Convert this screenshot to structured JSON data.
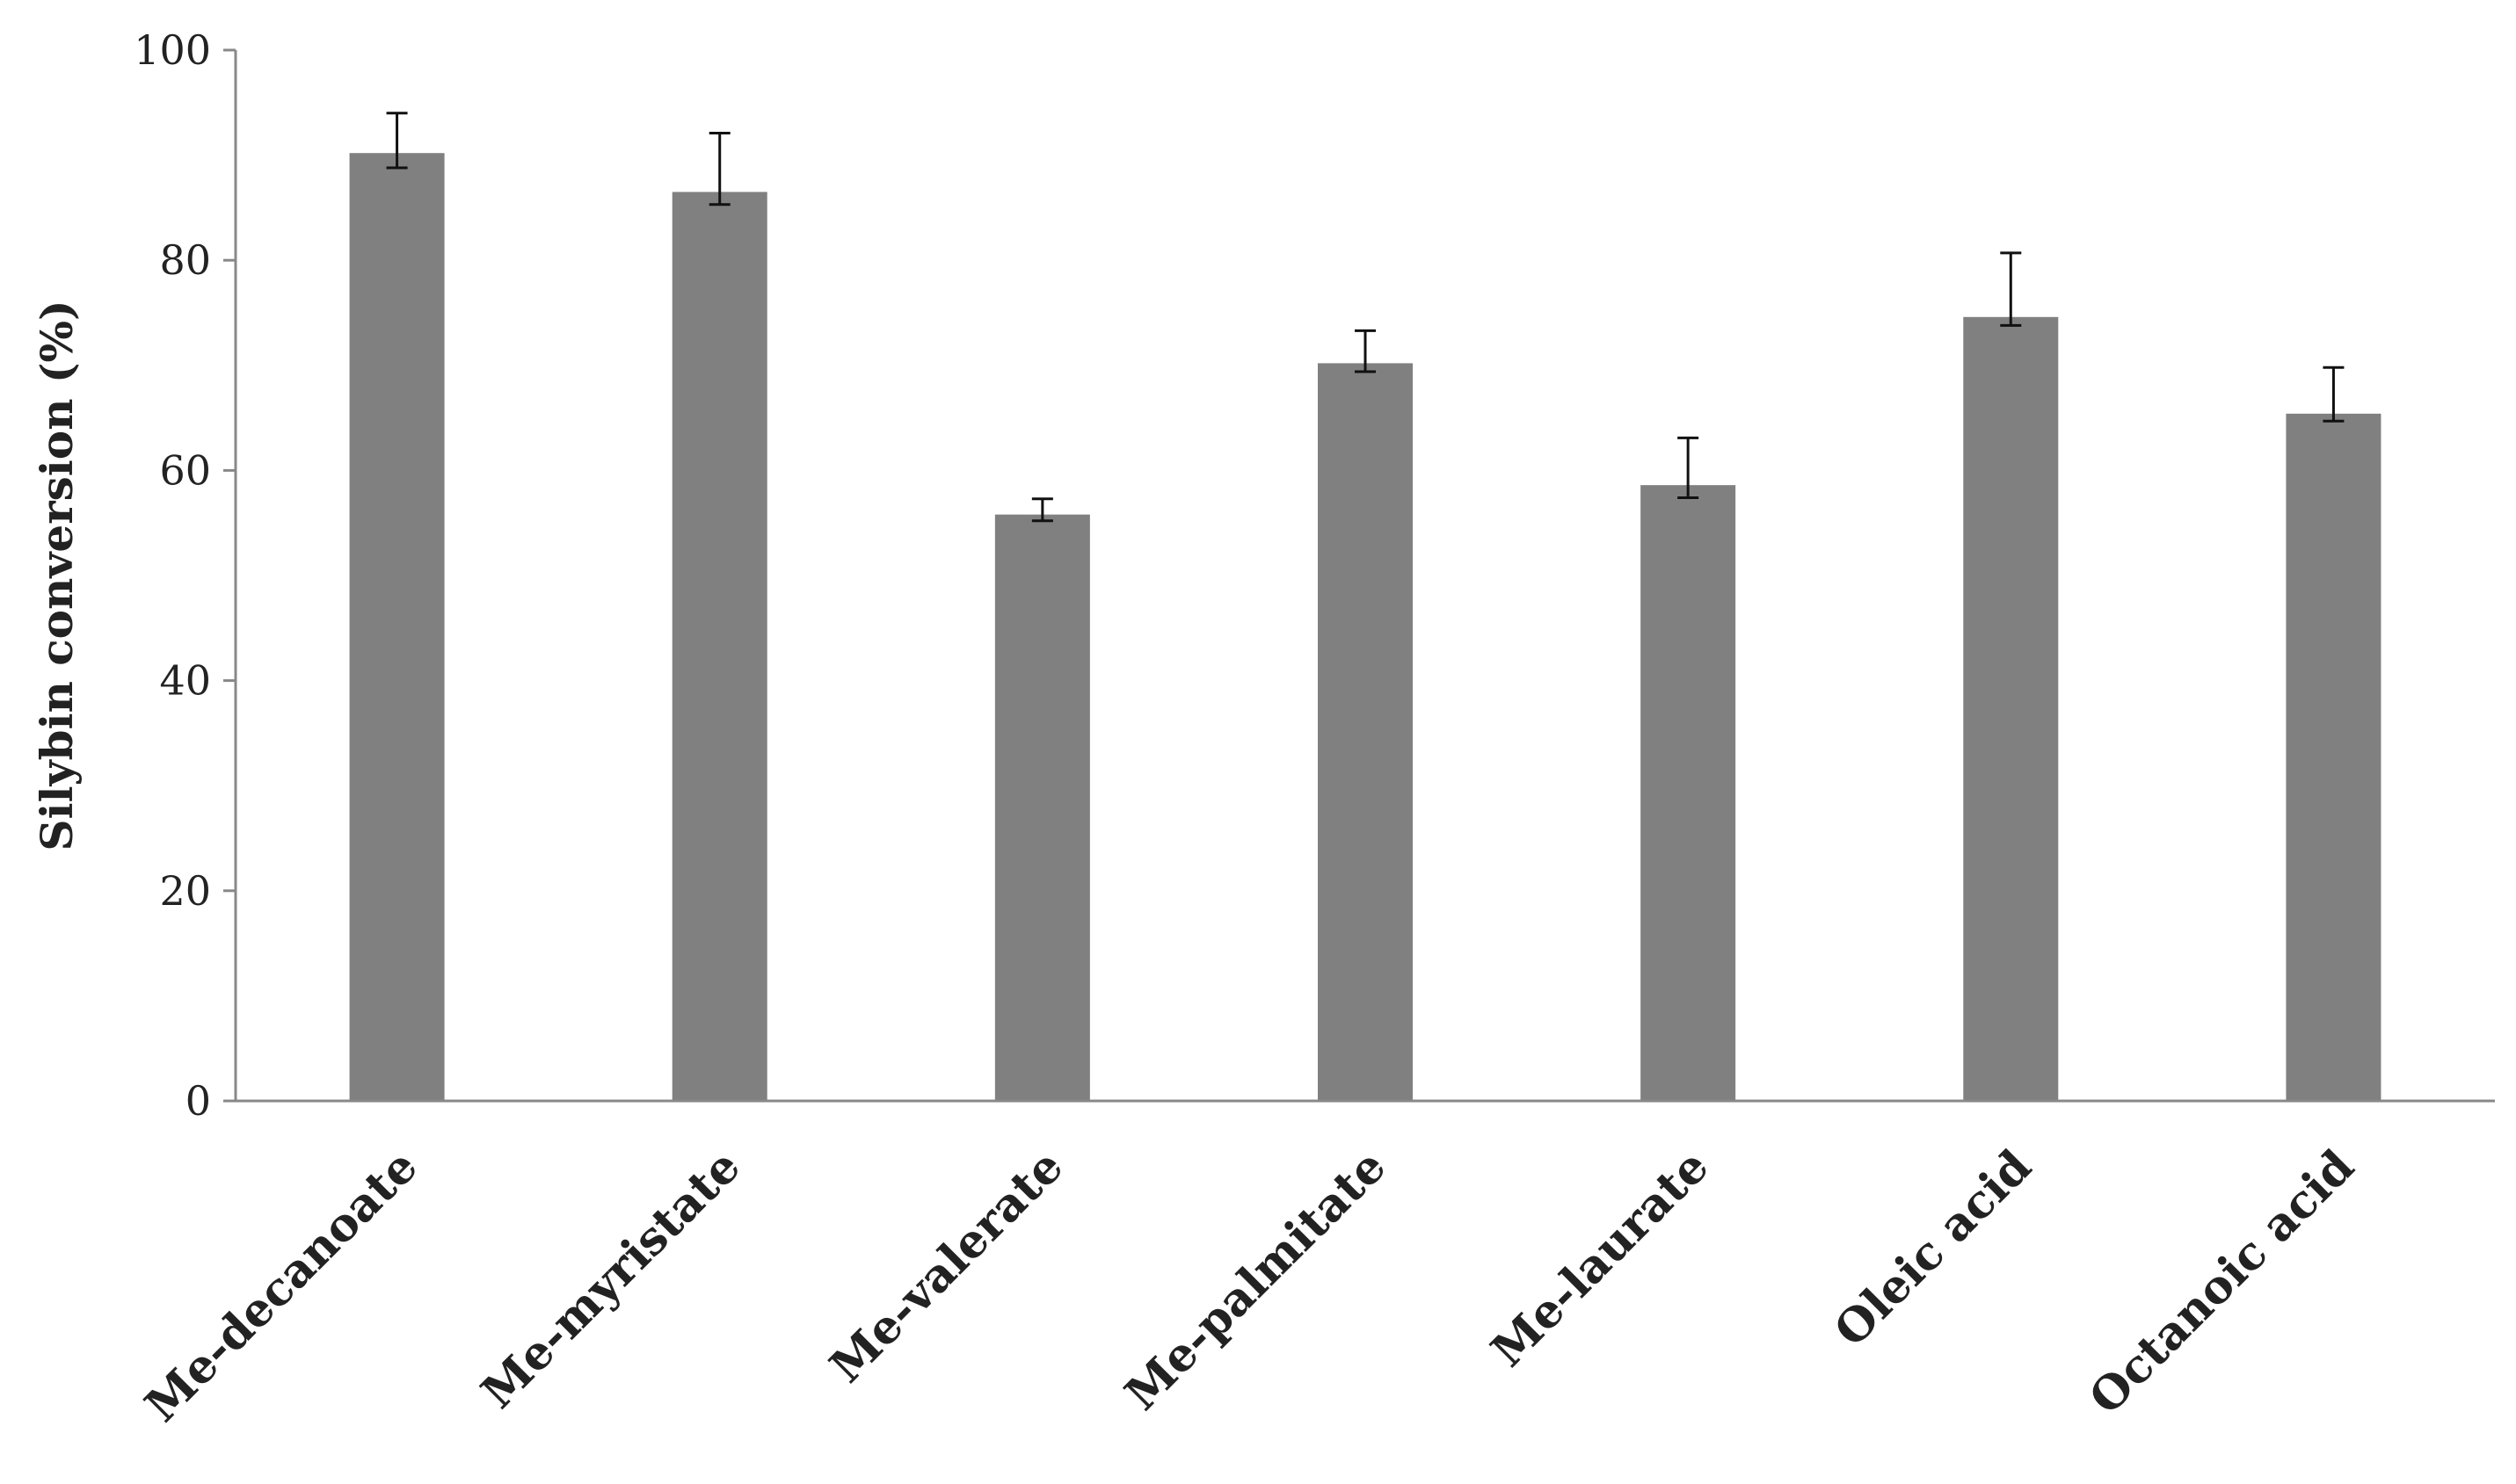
{
  "chart_data": {
    "type": "bar",
    "title": "",
    "xlabel": "",
    "ylabel": "Silybin conversion (%)",
    "categories": [
      "Me-decanoate",
      "Me-myristate",
      "Me-valerate",
      "Me-palmitate",
      "Me-laurate",
      "Oleic acid",
      "Octanoic acid"
    ],
    "values": [
      90.2,
      86.5,
      55.8,
      70.2,
      58.6,
      74.6,
      65.4
    ],
    "error_plus": [
      3.8,
      5.6,
      1.5,
      3.1,
      4.5,
      6.1,
      4.4
    ],
    "error_minus": [
      1.4,
      1.2,
      0.6,
      0.8,
      1.2,
      0.8,
      0.7
    ],
    "ylim": [
      0,
      100
    ],
    "yticks": [
      0,
      20,
      40,
      60,
      80,
      100
    ],
    "ytick_labels": [
      "0",
      "20",
      "40",
      "60",
      "80",
      "100"
    ],
    "grid": false,
    "legend": "none",
    "bar_color": "#808080",
    "axis_color": "#888888",
    "errorbar_color": "#111111"
  }
}
